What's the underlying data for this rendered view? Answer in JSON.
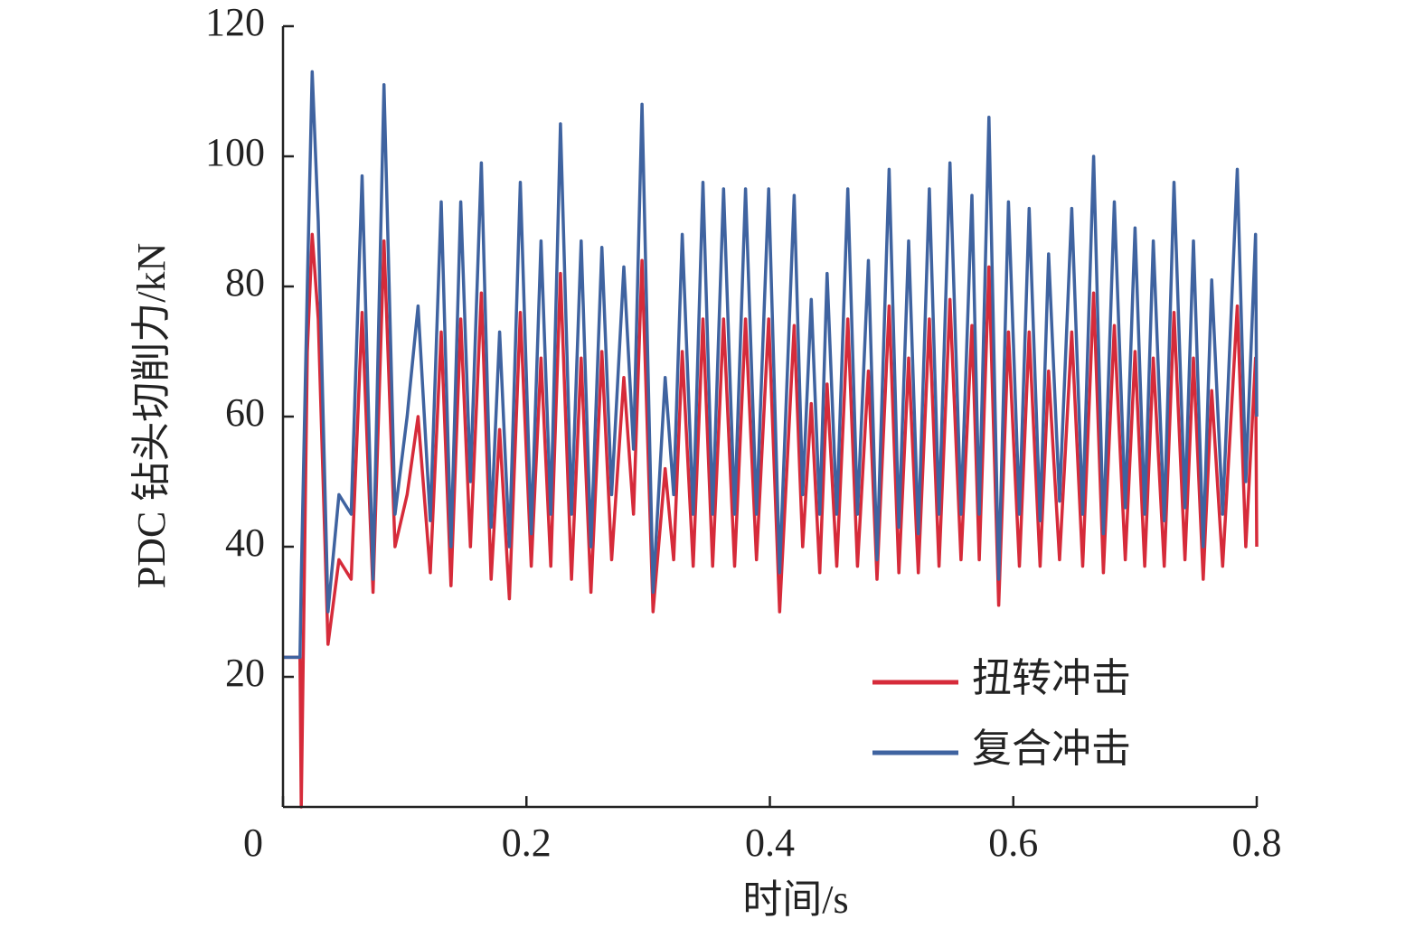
{
  "chart_data": {
    "type": "line",
    "xlabel": "时间/s",
    "ylabel": "PDC 钻头切削力/kN",
    "x": [
      0,
      0.014,
      0.015,
      0.02,
      0.024,
      0.029,
      0.037,
      0.046,
      0.056,
      0.065,
      0.074,
      0.083,
      0.092,
      0.102,
      0.111,
      0.121,
      0.13,
      0.138,
      0.146,
      0.154,
      0.163,
      0.171,
      0.178,
      0.186,
      0.195,
      0.204,
      0.212,
      0.22,
      0.228,
      0.237,
      0.245,
      0.253,
      0.262,
      0.27,
      0.28,
      0.288,
      0.295,
      0.304,
      0.314,
      0.321,
      0.328,
      0.337,
      0.345,
      0.353,
      0.362,
      0.371,
      0.38,
      0.389,
      0.399,
      0.408,
      0.42,
      0.427,
      0.434,
      0.441,
      0.447,
      0.455,
      0.464,
      0.472,
      0.481,
      0.488,
      0.498,
      0.506,
      0.514,
      0.522,
      0.531,
      0.539,
      0.548,
      0.557,
      0.566,
      0.572,
      0.58,
      0.588,
      0.596,
      0.605,
      0.613,
      0.622,
      0.629,
      0.638,
      0.648,
      0.657,
      0.666,
      0.674,
      0.683,
      0.692,
      0.7,
      0.708,
      0.715,
      0.724,
      0.732,
      0.741,
      0.748,
      0.756,
      0.763,
      0.772,
      0.784,
      0.791,
      0.799,
      0.8
    ],
    "series": [
      {
        "name": "扭转冲击",
        "color": "#d62b3a",
        "values": [
          23,
          23,
          0,
          70,
          88,
          75,
          25,
          38,
          35,
          76,
          33,
          87,
          40,
          48,
          60,
          36,
          73,
          34,
          75,
          40,
          79,
          35,
          58,
          32,
          76,
          37,
          69,
          37,
          82,
          35,
          69,
          33,
          70,
          38,
          66,
          45,
          84,
          30,
          52,
          38,
          70,
          37,
          75,
          37,
          75,
          37,
          75,
          38,
          75,
          30,
          74,
          40,
          62,
          36,
          65,
          37,
          75,
          37,
          67,
          35,
          77,
          36,
          69,
          36,
          75,
          37,
          78,
          38,
          74,
          38,
          83,
          31,
          73,
          37,
          73,
          37,
          67,
          38,
          73,
          37,
          79,
          36,
          74,
          38,
          70,
          37,
          69,
          37,
          76,
          38,
          69,
          35,
          64,
          37,
          77,
          40,
          69,
          40
        ]
      },
      {
        "name": "复合冲击",
        "color": "#3f63a0",
        "values": [
          23,
          23,
          35,
          80,
          113,
          90,
          30,
          48,
          45,
          97,
          35,
          111,
          45,
          60,
          77,
          44,
          93,
          40,
          93,
          50,
          99,
          43,
          73,
          40,
          96,
          42,
          87,
          45,
          105,
          45,
          87,
          40,
          86,
          48,
          83,
          55,
          108,
          33,
          66,
          48,
          88,
          45,
          96,
          45,
          95,
          45,
          95,
          45,
          95,
          36,
          94,
          48,
          78,
          45,
          82,
          45,
          95,
          45,
          84,
          38,
          98,
          43,
          87,
          42,
          95,
          45,
          99,
          45,
          94,
          45,
          106,
          35,
          93,
          45,
          92,
          44,
          85,
          47,
          92,
          45,
          100,
          42,
          93,
          46,
          89,
          45,
          87,
          44,
          96,
          46,
          87,
          40,
          81,
          45,
          98,
          50,
          88,
          60
        ]
      }
    ],
    "xlim": [
      0,
      0.8
    ],
    "ylim": [
      0,
      120
    ],
    "xticks": [
      0,
      0.2,
      0.4,
      0.6,
      0.8
    ],
    "yticks": [
      20,
      40,
      60,
      80,
      100,
      120
    ],
    "legend": "lower right"
  }
}
